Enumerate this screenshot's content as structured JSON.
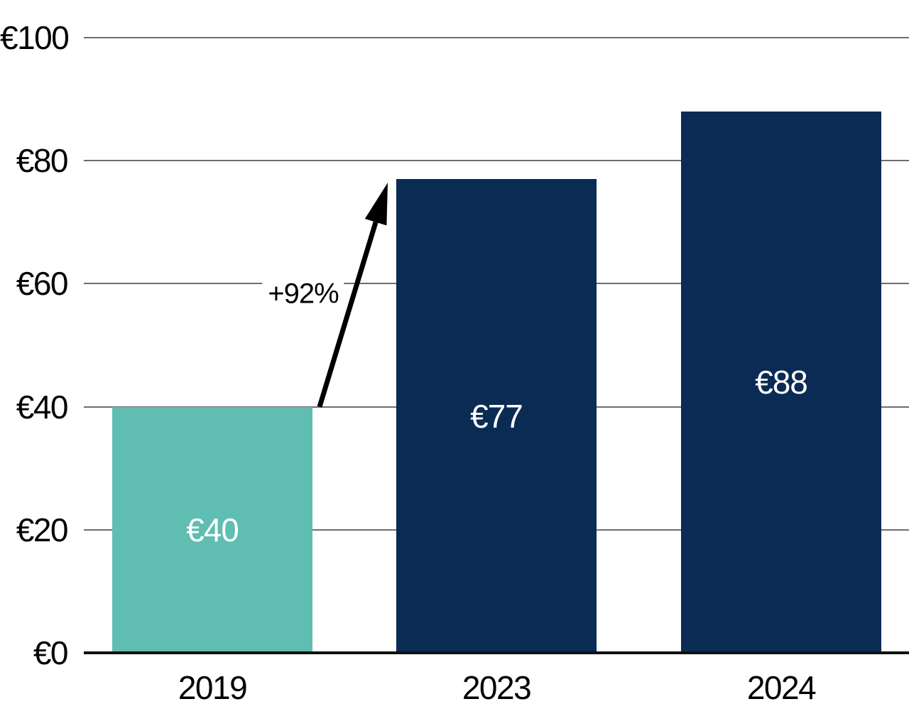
{
  "chart_data": {
    "type": "bar",
    "title": "",
    "xlabel": "",
    "ylabel": "",
    "categories": [
      "2019",
      "2023",
      "2024"
    ],
    "values": [
      40,
      77,
      88
    ],
    "bar_value_labels": [
      "€40",
      "€77",
      "€88"
    ],
    "bar_colors": [
      "#5FBDB2",
      "#0A2B53",
      "#0A2B53"
    ],
    "y_ticks": [
      {
        "value": 0,
        "label": "€0"
      },
      {
        "value": 20,
        "label": "€20"
      },
      {
        "value": 40,
        "label": "€40"
      },
      {
        "value": 60,
        "label": "€60"
      },
      {
        "value": 80,
        "label": "€80"
      },
      {
        "value": 100,
        "label": "€100"
      }
    ],
    "ylim": [
      0,
      100
    ],
    "grid": true,
    "legend": false,
    "annotation": {
      "text": "+92%",
      "from_category": "2019",
      "from_value": 40,
      "to_category": "2023",
      "to_value": 77
    }
  },
  "colors": {
    "background": "#FFFFFF",
    "gridline": "#6E6E6E",
    "axis_line": "#111111",
    "tick_text": "#000000",
    "bar_label_text": "#FFFFFF",
    "arrow": "#000000",
    "teal_accent": "#5FBDB2",
    "navy_accent": "#0A2B53"
  }
}
